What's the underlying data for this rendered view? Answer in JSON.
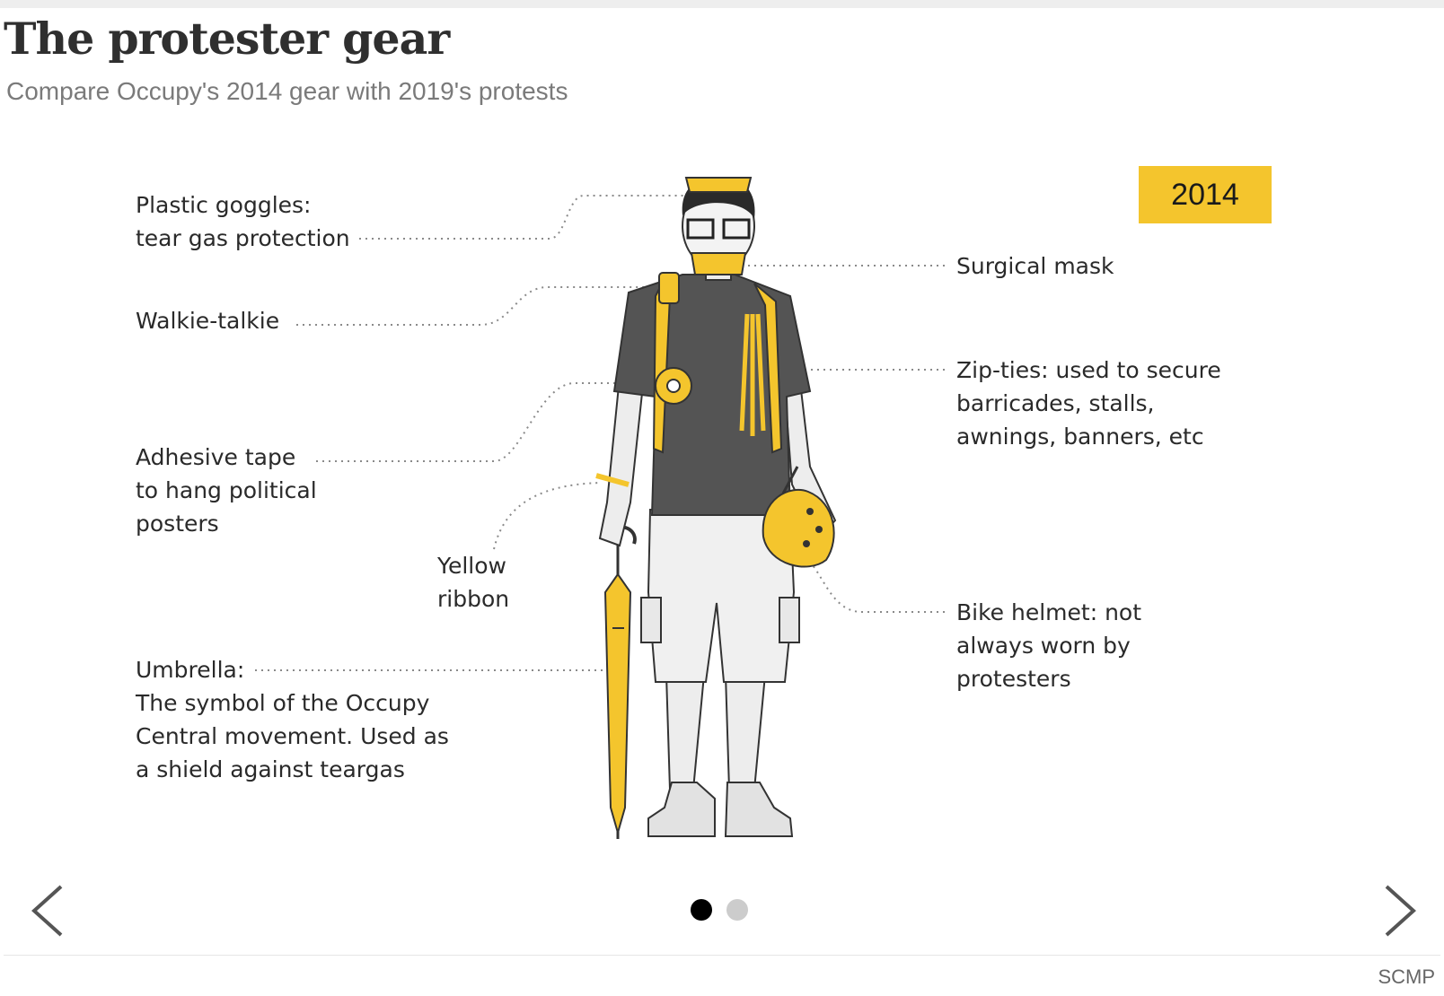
{
  "header": {
    "title": "The protester gear",
    "subtitle": "Compare Occupy's 2014 gear with 2019's protests"
  },
  "slide": {
    "year": "2014",
    "labels": {
      "goggles": [
        "Plastic goggles:",
        "tear gas protection"
      ],
      "walkie": [
        "Walkie-talkie"
      ],
      "tape": [
        "Adhesive tape",
        "to hang political",
        "posters"
      ],
      "ribbon": [
        "Yellow",
        "ribbon"
      ],
      "umbrella": [
        "Umbrella:",
        "The symbol of the Occupy",
        "Central movement. Used as",
        "a shield against teargas"
      ],
      "mask": [
        "Surgical mask"
      ],
      "zipties": [
        "Zip-ties: used to secure",
        "barricades, stalls,",
        "awnings, banners, etc"
      ],
      "helmet": [
        "Bike helmet: not",
        "always worn by",
        "protesters"
      ]
    }
  },
  "carousel": {
    "prev_icon": "chevron-left-icon",
    "next_icon": "chevron-right-icon",
    "active_index": 0,
    "slide_count": 2
  },
  "footer": {
    "credit": "SCMP"
  },
  "colors": {
    "accent": "#f4c52d",
    "shirt": "#545454",
    "dot_active": "#000000",
    "dot_inactive": "#cccccc"
  }
}
